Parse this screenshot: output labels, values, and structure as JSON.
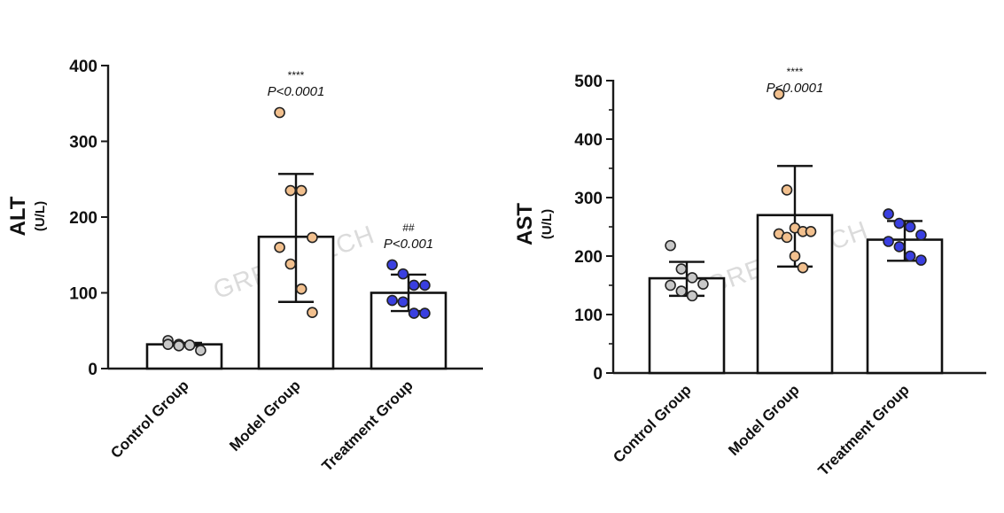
{
  "watermark": "GREENTECH",
  "colors": {
    "control": "#c8c8c8",
    "model": "#f2c08e",
    "treatment": "#3a3fe0"
  },
  "chart_data": [
    {
      "type": "bar",
      "ylabel": "ALT",
      "yunit": "(U/L)",
      "ylim": [
        0,
        400
      ],
      "yticks": [
        0,
        100,
        200,
        300,
        400
      ],
      "categories": [
        "Control Group",
        "Model Group",
        "Treatment Group"
      ],
      "values": [
        32,
        174,
        100
      ],
      "error_low": [
        30,
        88,
        76
      ],
      "error_high": [
        34,
        257,
        124
      ],
      "points": [
        [
          37,
          32,
          31,
          24,
          32,
          30,
          31
        ],
        [
          338,
          235,
          235,
          173,
          160,
          138,
          105,
          74
        ],
        [
          137,
          125,
          110,
          110,
          90,
          88,
          73,
          73
        ]
      ],
      "annotations": [
        {
          "category": "Model Group",
          "mark": "****",
          "p": "P<0.0001"
        },
        {
          "category": "Treatment Group",
          "mark": "##",
          "p": "P<0.001"
        }
      ]
    },
    {
      "type": "bar",
      "ylabel": "AST",
      "yunit": "(U/L)",
      "ylim": [
        0,
        500
      ],
      "yticks": [
        0,
        100,
        200,
        300,
        400,
        500
      ],
      "categories": [
        "Control Group",
        "Model Group",
        "Treatment Group"
      ],
      "values": [
        162,
        270,
        228
      ],
      "error_low": [
        132,
        182,
        192
      ],
      "error_high": [
        190,
        354,
        260
      ],
      "points": [
        [
          218,
          178,
          163,
          152,
          150,
          140,
          132
        ],
        [
          477,
          313,
          248,
          242,
          242,
          238,
          232,
          200,
          180
        ],
        [
          272,
          256,
          250,
          236,
          225,
          216,
          200,
          193
        ]
      ],
      "annotations": [
        {
          "category": "Model Group",
          "mark": "****",
          "p": "P<0.0001"
        }
      ]
    }
  ]
}
